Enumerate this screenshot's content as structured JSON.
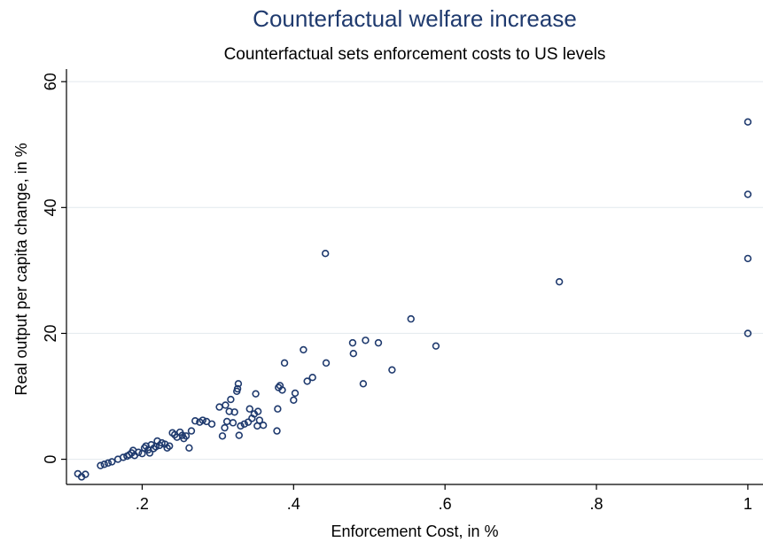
{
  "colors": {
    "title": "#1f3a6e",
    "marker": "#1f3a6e",
    "grid": "#e6ecef",
    "axis": "#000000"
  },
  "chart_data": {
    "type": "scatter",
    "title": "Counterfactual welfare increase",
    "subtitle": "Counterfactual sets enforcement costs to US levels",
    "xlabel": "Enforcement Cost, in %",
    "ylabel": "Real output per capita change, in %",
    "xlim": [
      0.1,
      1.02
    ],
    "ylim": [
      -4,
      62
    ],
    "xticks": [
      {
        "value": 0.2,
        "label": ".2"
      },
      {
        "value": 0.4,
        "label": ".4"
      },
      {
        "value": 0.6,
        "label": ".6"
      },
      {
        "value": 0.8,
        "label": ".8"
      },
      {
        "value": 1.0,
        "label": "1"
      }
    ],
    "yticks": [
      {
        "value": 0,
        "label": "0"
      },
      {
        "value": 20,
        "label": "20"
      },
      {
        "value": 40,
        "label": "40"
      },
      {
        "value": 60,
        "label": "60"
      }
    ],
    "grid": "horizontal",
    "marker": "hollow-circle",
    "points": [
      {
        "x": 0.115,
        "y": -2.3
      },
      {
        "x": 0.12,
        "y": -2.8
      },
      {
        "x": 0.125,
        "y": -2.4
      },
      {
        "x": 0.145,
        "y": -1.0
      },
      {
        "x": 0.15,
        "y": -0.8
      },
      {
        "x": 0.155,
        "y": -0.6
      },
      {
        "x": 0.16,
        "y": -0.4
      },
      {
        "x": 0.168,
        "y": 0.0
      },
      {
        "x": 0.175,
        "y": 0.3
      },
      {
        "x": 0.18,
        "y": 0.5
      },
      {
        "x": 0.183,
        "y": 0.7
      },
      {
        "x": 0.186,
        "y": 1.0
      },
      {
        "x": 0.188,
        "y": 1.4
      },
      {
        "x": 0.19,
        "y": 0.6
      },
      {
        "x": 0.195,
        "y": 1.1
      },
      {
        "x": 0.2,
        "y": 0.9
      },
      {
        "x": 0.203,
        "y": 1.8
      },
      {
        "x": 0.205,
        "y": 2.1
      },
      {
        "x": 0.208,
        "y": 1.5
      },
      {
        "x": 0.21,
        "y": 1.0
      },
      {
        "x": 0.212,
        "y": 2.3
      },
      {
        "x": 0.215,
        "y": 1.7
      },
      {
        "x": 0.218,
        "y": 2.0
      },
      {
        "x": 0.22,
        "y": 2.9
      },
      {
        "x": 0.223,
        "y": 2.2
      },
      {
        "x": 0.226,
        "y": 2.6
      },
      {
        "x": 0.23,
        "y": 2.4
      },
      {
        "x": 0.233,
        "y": 1.8
      },
      {
        "x": 0.236,
        "y": 2.1
      },
      {
        "x": 0.24,
        "y": 4.2
      },
      {
        "x": 0.243,
        "y": 3.9
      },
      {
        "x": 0.246,
        "y": 3.5
      },
      {
        "x": 0.25,
        "y": 4.3
      },
      {
        "x": 0.253,
        "y": 3.8
      },
      {
        "x": 0.255,
        "y": 3.3
      },
      {
        "x": 0.258,
        "y": 3.7
      },
      {
        "x": 0.262,
        "y": 1.8
      },
      {
        "x": 0.265,
        "y": 4.5
      },
      {
        "x": 0.27,
        "y": 6.1
      },
      {
        "x": 0.276,
        "y": 5.9
      },
      {
        "x": 0.28,
        "y": 6.2
      },
      {
        "x": 0.285,
        "y": 6.0
      },
      {
        "x": 0.292,
        "y": 5.6
      },
      {
        "x": 0.302,
        "y": 8.3
      },
      {
        "x": 0.306,
        "y": 3.7
      },
      {
        "x": 0.309,
        "y": 5.0
      },
      {
        "x": 0.31,
        "y": 8.6
      },
      {
        "x": 0.312,
        "y": 6.0
      },
      {
        "x": 0.315,
        "y": 7.6
      },
      {
        "x": 0.317,
        "y": 9.5
      },
      {
        "x": 0.32,
        "y": 5.8
      },
      {
        "x": 0.322,
        "y": 7.5
      },
      {
        "x": 0.325,
        "y": 10.8
      },
      {
        "x": 0.326,
        "y": 11.2
      },
      {
        "x": 0.327,
        "y": 12.0
      },
      {
        "x": 0.328,
        "y": 3.8
      },
      {
        "x": 0.33,
        "y": 5.3
      },
      {
        "x": 0.335,
        "y": 5.6
      },
      {
        "x": 0.34,
        "y": 5.9
      },
      {
        "x": 0.342,
        "y": 8.0
      },
      {
        "x": 0.345,
        "y": 6.5
      },
      {
        "x": 0.348,
        "y": 7.2
      },
      {
        "x": 0.35,
        "y": 10.4
      },
      {
        "x": 0.352,
        "y": 5.3
      },
      {
        "x": 0.353,
        "y": 7.6
      },
      {
        "x": 0.355,
        "y": 6.2
      },
      {
        "x": 0.36,
        "y": 5.4
      },
      {
        "x": 0.378,
        "y": 4.5
      },
      {
        "x": 0.379,
        "y": 8.0
      },
      {
        "x": 0.38,
        "y": 11.4
      },
      {
        "x": 0.382,
        "y": 11.7
      },
      {
        "x": 0.385,
        "y": 11.0
      },
      {
        "x": 0.388,
        "y": 15.3
      },
      {
        "x": 0.4,
        "y": 9.4
      },
      {
        "x": 0.402,
        "y": 10.5
      },
      {
        "x": 0.413,
        "y": 17.4
      },
      {
        "x": 0.418,
        "y": 12.4
      },
      {
        "x": 0.425,
        "y": 13.0
      },
      {
        "x": 0.442,
        "y": 32.7
      },
      {
        "x": 0.443,
        "y": 15.3
      },
      {
        "x": 0.478,
        "y": 18.5
      },
      {
        "x": 0.479,
        "y": 16.8
      },
      {
        "x": 0.492,
        "y": 12.0
      },
      {
        "x": 0.495,
        "y": 18.9
      },
      {
        "x": 0.512,
        "y": 18.5
      },
      {
        "x": 0.53,
        "y": 14.2
      },
      {
        "x": 0.555,
        "y": 22.3
      },
      {
        "x": 0.588,
        "y": 18.0
      },
      {
        "x": 0.751,
        "y": 28.2
      },
      {
        "x": 1.0,
        "y": 53.6
      },
      {
        "x": 1.0,
        "y": 42.1
      },
      {
        "x": 1.0,
        "y": 31.9
      },
      {
        "x": 1.0,
        "y": 20.0
      }
    ]
  }
}
